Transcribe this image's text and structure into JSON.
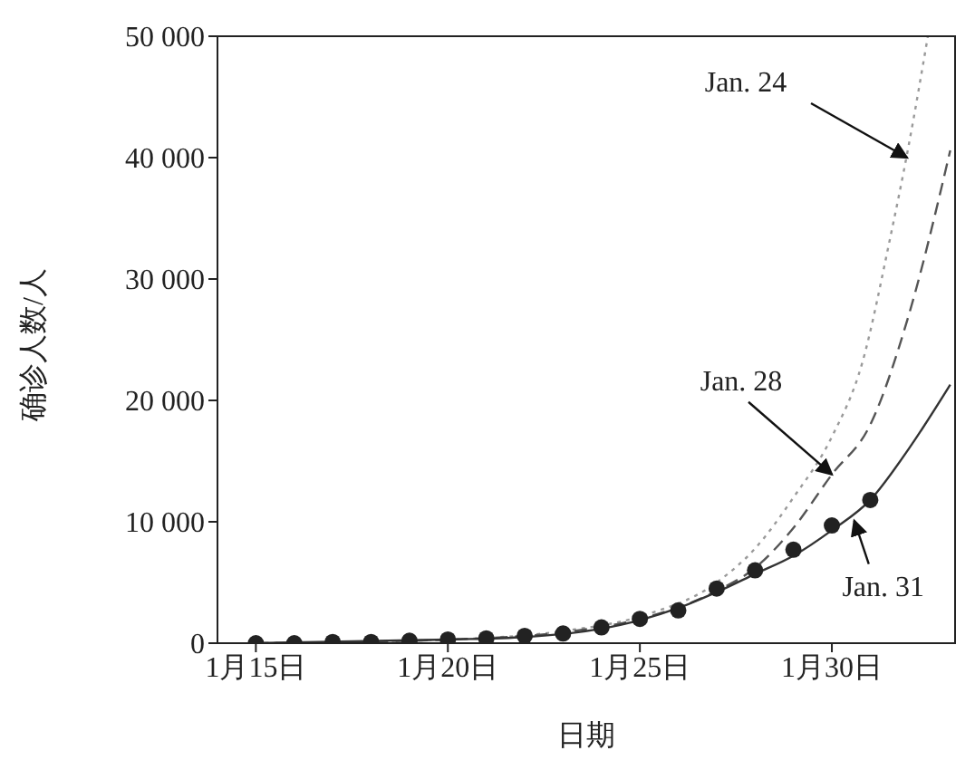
{
  "chart_data": {
    "type": "line",
    "xlabel": "日期",
    "ylabel": "确诊人数/人",
    "xlim": [
      "--01-14",
      "--02-02T05:00"
    ],
    "xticks": [
      {
        "value": "--01-15",
        "label": "1月15日"
      },
      {
        "value": "--01-20",
        "label": "1月20日"
      },
      {
        "value": "--01-25",
        "label": "1月25日"
      },
      {
        "value": "--01-30",
        "label": "1月30日"
      }
    ],
    "ylim": [
      0,
      50000
    ],
    "yticks": [
      0,
      {
        "value": 10000,
        "label": "10 000"
      },
      {
        "value": 20000,
        "label": "20 000"
      },
      {
        "value": 30000,
        "label": "30 000"
      },
      {
        "value": 40000,
        "label": "40 000"
      },
      {
        "value": 50000,
        "label": "50 000"
      }
    ],
    "series": [
      {
        "type": "line",
        "line_style": "dotted",
        "color": "#9a9a9a",
        "x": [
          "--01-15",
          "--01-20",
          "--01-23",
          "--01-25",
          "--01-27",
          "--01-28",
          "--01-29",
          "--01-30",
          "--01-30T19:00",
          "--01-31T12:00",
          "--02-01",
          "--02-01T12:00"
        ],
        "values": [
          0,
          300,
          1000,
          2200,
          5000,
          7800,
          12000,
          17000,
          23100,
          33100,
          41000,
          50000
        ]
      },
      {
        "type": "line",
        "line_style": "dashed",
        "color": "#555555",
        "x": [
          "--01-15",
          "--01-20",
          "--01-23",
          "--01-25",
          "--01-27",
          "--01-28",
          "--01-29",
          "--01-30",
          "--01-31",
          "--02-01",
          "--02-02T02:00"
        ],
        "values": [
          0,
          300,
          900,
          2000,
          4300,
          6200,
          9500,
          13900,
          18000,
          27000,
          40600
        ]
      },
      {
        "type": "line",
        "line_style": "solid",
        "color": "#333333",
        "x": [
          "--01-15",
          "--01-20",
          "--01-22",
          "--01-24",
          "--01-25",
          "--01-26",
          "--01-27",
          "--01-28",
          "--01-29",
          "--01-30",
          "--01-31",
          "--02-01",
          "--02-02T02:00"
        ],
        "values": [
          0,
          300,
          500,
          1200,
          1900,
          2900,
          4200,
          5700,
          7200,
          9300,
          11800,
          16000,
          21300
        ]
      },
      {
        "type": "scatter",
        "marker": "circle",
        "color": "#222222",
        "x": [
          "--01-15",
          "--01-16",
          "--01-17",
          "--01-18",
          "--01-19",
          "--01-20",
          "--01-21",
          "--01-22",
          "--01-23",
          "--01-24",
          "--01-25",
          "--01-26",
          "--01-27",
          "--01-28",
          "--01-29",
          "--01-30",
          "--01-31"
        ],
        "values": [
          0,
          0,
          100,
          100,
          200,
          300,
          400,
          600,
          800,
          1300,
          2000,
          2700,
          4500,
          6000,
          7700,
          9700,
          11800
        ]
      }
    ],
    "annotations": [
      {
        "text": "Jan. 24",
        "x": "--01-31T23:00",
        "y": 40000
      },
      {
        "text": "Jan. 28",
        "x": "--01-30",
        "y": 13900
      },
      {
        "text": "Jan. 31",
        "x": "--01-30T14:00",
        "y": 10100
      }
    ]
  }
}
